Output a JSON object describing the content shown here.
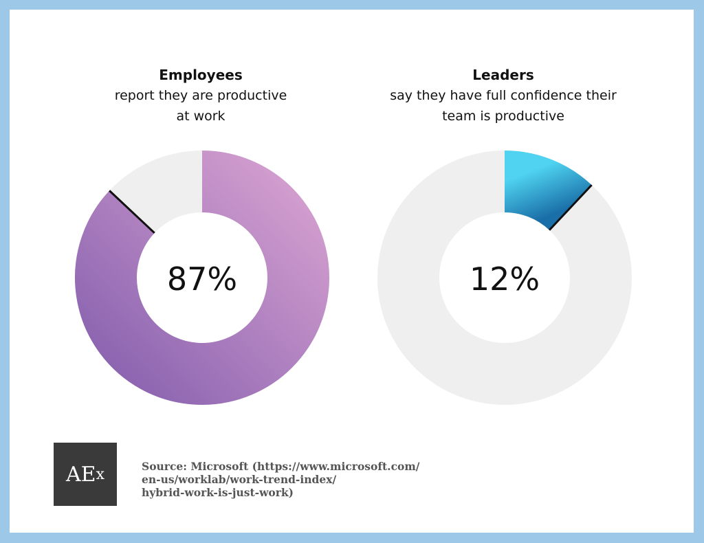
{
  "chart_data": [
    {
      "type": "pie",
      "title": "Employees",
      "subtitle_lines": [
        "report they are productive",
        "at work"
      ],
      "value": 87,
      "center_label": "87%",
      "colors": {
        "from": "#d49fcf",
        "to": "#8a63b0",
        "remainder": "#efefef"
      }
    },
    {
      "type": "pie",
      "title": "Leaders",
      "subtitle_lines": [
        "say they have full confidence their",
        "team is productive"
      ],
      "value": 12,
      "center_label": "12%",
      "colors": {
        "from": "#4fd3f0",
        "to": "#1a6fa8",
        "remainder": "#efefef"
      }
    }
  ],
  "logo": {
    "main": "AE",
    "small": "x"
  },
  "source": {
    "lines": [
      "Source: Microsoft (https://www.microsoft.com/",
      "en-us/worklab/work-trend-index/",
      "hybrid-work-is-just-work)"
    ]
  }
}
